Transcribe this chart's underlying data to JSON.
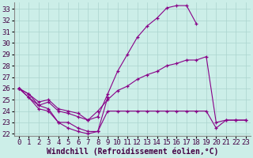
{
  "xlabel": "Windchill (Refroidissement éolien,°C)",
  "bg_color": "#cceee8",
  "grid_color": "#aad4ce",
  "line_color": "#880088",
  "xlim": [
    -0.5,
    23.5
  ],
  "ylim": [
    21.8,
    33.6
  ],
  "xticks": [
    0,
    1,
    2,
    3,
    4,
    5,
    6,
    7,
    8,
    9,
    10,
    11,
    12,
    13,
    14,
    15,
    16,
    17,
    18,
    19,
    20,
    21,
    22,
    23
  ],
  "yticks": [
    22,
    23,
    24,
    25,
    26,
    27,
    28,
    29,
    30,
    31,
    32,
    33
  ],
  "line_upper_x": [
    0,
    1,
    2,
    3,
    4,
    5,
    6,
    7,
    8,
    9,
    10,
    11,
    12,
    13,
    14,
    15,
    16,
    17,
    18
  ],
  "line_upper_y": [
    26.0,
    25.5,
    24.8,
    25.0,
    24.2,
    24.0,
    23.8,
    23.2,
    23.5,
    25.5,
    27.5,
    29.0,
    30.5,
    31.5,
    32.2,
    33.1,
    33.3,
    33.3,
    31.7
  ],
  "line_mid_x": [
    0,
    1,
    2,
    3,
    4,
    5,
    6,
    7,
    8,
    9,
    10,
    11,
    12,
    13,
    14,
    15,
    16,
    17,
    18,
    19,
    20,
    21,
    22,
    23
  ],
  "line_mid_y": [
    26.0,
    25.5,
    24.5,
    24.8,
    24.0,
    23.8,
    23.5,
    23.2,
    24.0,
    25.0,
    25.8,
    26.2,
    26.8,
    27.2,
    27.5,
    28.0,
    28.2,
    28.5,
    28.5,
    28.8,
    23.0,
    23.2,
    23.2,
    23.2
  ],
  "line_low_x": [
    0,
    1,
    2,
    3,
    4,
    5,
    6,
    7,
    8,
    9,
    10,
    11,
    12,
    13,
    14,
    15,
    16,
    17,
    18,
    19,
    20,
    21,
    22,
    23
  ],
  "line_low_y": [
    26.0,
    25.2,
    24.5,
    24.2,
    23.0,
    23.0,
    22.5,
    22.2,
    22.2,
    24.0,
    24.0,
    24.0,
    24.0,
    24.0,
    24.0,
    24.0,
    24.0,
    24.0,
    24.0,
    24.0,
    22.5,
    23.2,
    23.2,
    23.2
  ],
  "line_dip_x": [
    0,
    1,
    2,
    3,
    4,
    5,
    6,
    7,
    8,
    9
  ],
  "line_dip_y": [
    26.0,
    25.2,
    24.2,
    24.0,
    23.0,
    22.5,
    22.2,
    22.0,
    22.2,
    25.2
  ],
  "xlabel_fontsize": 7,
  "tick_fontsize": 6.5
}
